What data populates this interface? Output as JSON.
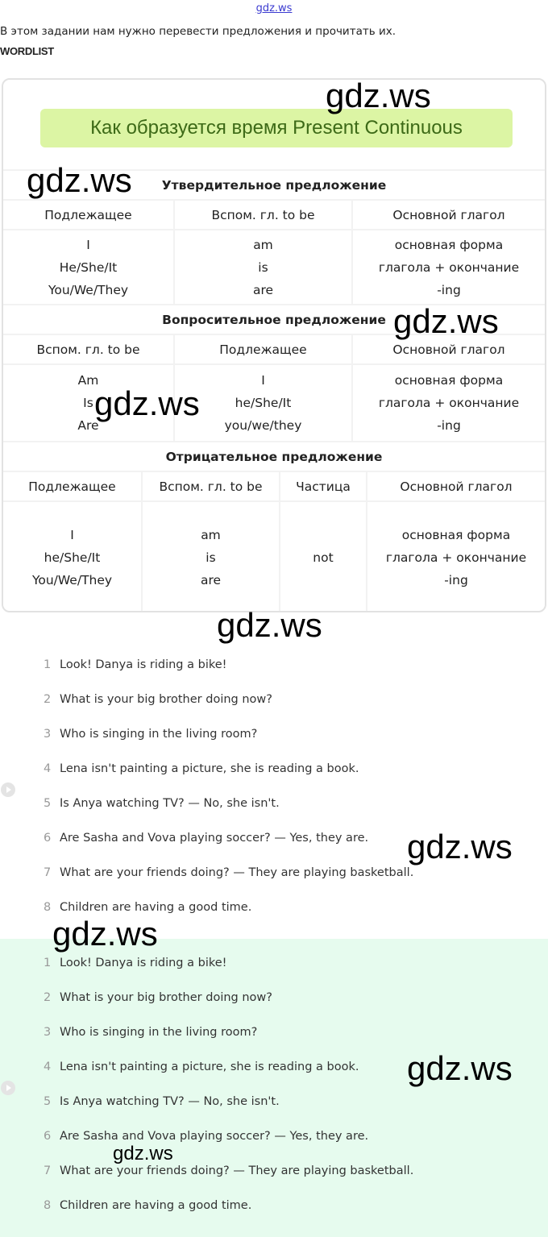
{
  "header": {
    "site_link": "gdz.ws",
    "intro": "В этом задании нам нужно перевести предложения и прочитать их.",
    "wordlist": "WORDLIST"
  },
  "table": {
    "title": "Как образуется время Present Continuous",
    "affirmative": {
      "heading": "Утвердительное предложение",
      "columns": [
        "Подлежащее",
        "Вспом. гл. to be",
        "Основной глагол"
      ],
      "cells": [
        [
          "I",
          "He/She/It",
          "You/We/They"
        ],
        [
          "am",
          "is",
          "are"
        ],
        [
          "основная форма",
          "глагола + окончание",
          "-ing"
        ]
      ]
    },
    "interrogative": {
      "heading": "Вопросительное предложение",
      "columns": [
        "Вспом. гл. to be",
        "Подлежащее",
        "Основной глагол"
      ],
      "cells": [
        [
          "Am",
          "Is",
          "Are"
        ],
        [
          "I",
          "he/She/It",
          "you/we/they"
        ],
        [
          "основная форма",
          "глагола + окончание",
          "-ing"
        ]
      ]
    },
    "negative": {
      "heading": "Отрицательное предложение",
      "columns": [
        "Подлежащее",
        "Вспом. гл. to be",
        "Частица",
        "Основной глагол"
      ],
      "cells": [
        [
          "I",
          "he/She/It",
          "You/We/They"
        ],
        [
          "am",
          "is",
          "are"
        ],
        [
          "not"
        ],
        [
          "основная форма",
          "глагола + окончание",
          "-ing"
        ]
      ]
    }
  },
  "sentences": [
    "Look! Danya is riding a bike!",
    "What is your big brother doing now?",
    "Who is singing in the living room?",
    "Lena isn't painting a picture, she is reading a book.",
    "Is Anya watching TV? — No, she isn't.",
    "Are Sasha and Vova playing soccer? — Yes, they are.",
    "What are your friends doing? — They are playing basketball.",
    "Children are having a good time."
  ],
  "watermark": "gdz.ws",
  "colors": {
    "title_bg": "#dcf5a4",
    "title_text": "#3d6a17",
    "answer_bg": "#e6fbee"
  }
}
